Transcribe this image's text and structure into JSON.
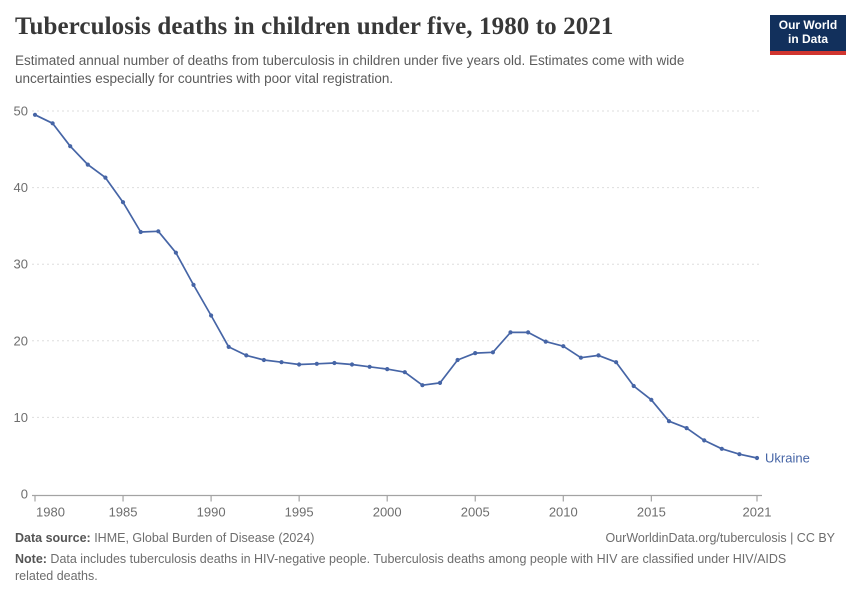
{
  "header": {
    "title": "Tuberculosis deaths in children under five, 1980 to 2021",
    "subtitle": "Estimated annual number of deaths from tuberculosis in children under five years old. Estimates come with wide uncertainties especially for countries with poor vital registration.",
    "logo": {
      "line1": "Our World",
      "line2": "in Data"
    }
  },
  "colors": {
    "logo_bg": "#12305C",
    "logo_accent": "#D0352F",
    "line": "#4665A6",
    "grid": "#DDDDDD",
    "axis": "#A3A3A3",
    "tick_label": "#6E6E6E",
    "title_text": "#383838",
    "subtitle_text": "#5B5B5B",
    "footer_text": "#6D6D6D"
  },
  "chart_data": {
    "type": "line",
    "title": "Tuberculosis deaths in children under five, 1980 to 2021",
    "xlabel": "",
    "ylabel": "",
    "xlim": [
      1980,
      2021
    ],
    "ylim": [
      0,
      50
    ],
    "x_ticks": [
      1980,
      1985,
      1990,
      1995,
      2000,
      2005,
      2010,
      2015,
      2021
    ],
    "y_ticks": [
      0,
      10,
      20,
      30,
      40,
      50
    ],
    "grid": "horizontal-dashed",
    "legend": "inline end-of-line label",
    "series": [
      {
        "name": "Ukraine",
        "color": "#4665A6",
        "x": [
          1980,
          1981,
          1982,
          1983,
          1984,
          1985,
          1986,
          1987,
          1988,
          1989,
          1990,
          1991,
          1992,
          1993,
          1994,
          1995,
          1996,
          1997,
          1998,
          1999,
          2000,
          2001,
          2002,
          2003,
          2004,
          2005,
          2006,
          2007,
          2008,
          2009,
          2010,
          2011,
          2012,
          2013,
          2014,
          2015,
          2016,
          2017,
          2018,
          2019,
          2020,
          2021
        ],
        "values": [
          49.5,
          48.4,
          45.4,
          43.0,
          41.3,
          38.1,
          34.2,
          34.3,
          31.5,
          27.3,
          23.3,
          19.2,
          18.1,
          17.5,
          17.2,
          16.9,
          17.0,
          17.1,
          16.9,
          16.6,
          16.3,
          15.9,
          14.2,
          14.5,
          17.5,
          18.4,
          18.5,
          21.1,
          21.1,
          19.9,
          19.3,
          17.8,
          18.1,
          17.2,
          14.1,
          12.3,
          9.5,
          8.6,
          7.0,
          5.9,
          5.2,
          4.7
        ]
      }
    ]
  },
  "footer": {
    "source_label": "Data source:",
    "source_text": " IHME, Global Burden of Disease (2024)",
    "rights": "OurWorldinData.org/tuberculosis | CC BY",
    "note_label": "Note:",
    "note_text": " Data includes tuberculosis deaths in HIV-negative people. Tuberculosis deaths among people with HIV are classified under HIV/AIDS related deaths."
  }
}
